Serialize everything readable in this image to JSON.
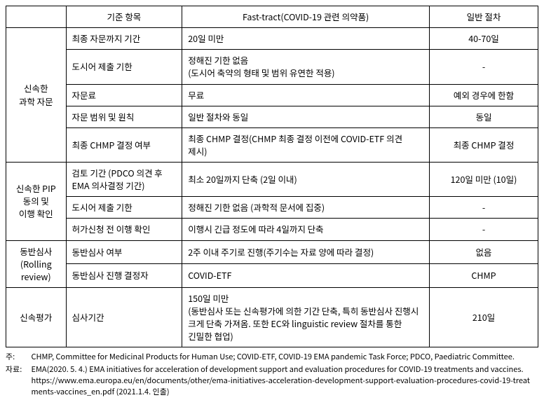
{
  "table": {
    "headers": {
      "group": "",
      "criteria": "기준 항목",
      "fast": "Fast-tract(COVID-19 관련 의약품)",
      "general": "일반 절차"
    },
    "groups": [
      {
        "label": "신속한\n과학 자문",
        "rows": [
          {
            "criteria": "최종 자문까지 기간",
            "fast": "20일 미만",
            "general": "40-70일"
          },
          {
            "criteria": "도시어 제출 기한",
            "fast": "정해진 기한 없음\n(도시어 축약의 형태 및 범위 유연한 적용)",
            "general": "-"
          },
          {
            "criteria": "자문료",
            "fast": "무료",
            "general": "예외 경우에 한함"
          },
          {
            "criteria": "자문 범위 및 원칙",
            "fast": "일반 절차와 동일",
            "general": "동일"
          },
          {
            "criteria": "최종 CHMP 결정 여부",
            "fast": "최종 CHMP 결정(CHMP 최종 결정 이전에 COVID-ETF 의견 제시)",
            "general": "최종 CHMP 결정"
          }
        ]
      },
      {
        "label": "신속한 PIP\n동의 및\n이행 확인",
        "rows": [
          {
            "criteria": "검토 기간 (PDCO 의견 후 EMA 의사결정 기간)",
            "fast": "최소 20일까지 단축  (2일 이내)",
            "general": "120일 미만 (10일)"
          },
          {
            "criteria": "도시어 제출 기한",
            "fast": "정해진 기한 없음 (과학적 문서에 집중)",
            "general": "-"
          },
          {
            "criteria": "허가신청 전 이행 확인",
            "fast": "이행시 긴급 정도에 따라 4일까지 단축",
            "general": "-"
          }
        ]
      },
      {
        "label": "동반심사\n(Rolling\nreview)",
        "rows": [
          {
            "criteria": "동반심사 여부",
            "fast": "2주 이내 주기로 진행(주기수는 자료 양에 따라 결정)",
            "general": "없음"
          },
          {
            "criteria": "동반심사 진행 결정자",
            "fast": "COVID-ETF",
            "general": "CHMP"
          }
        ]
      },
      {
        "label": "신속평가",
        "rows": [
          {
            "criteria": "심사기간",
            "fast": "150일 미만\n(동반심사 또는 신속평가에 의한 기간 단축, 특히 동반심사 진행시 크게 단축 가져옴. 또한 EC와 linguistic review 절차를 통한 긴밀한 협업)",
            "general": "210일"
          }
        ]
      }
    ]
  },
  "footnotes": {
    "note_label": "주:",
    "note_body": "CHMP, Committee for Medicinal Products for Human Use; COVID-ETF, COVID-19 EMA pandemic Task Force; PDCO, Paediatric Committee.",
    "source_label": "자료:",
    "source_body_1": "EMA(2020. 5. 4.) EMA initiatives for acceleration of development support and evaluation procedures for COVID-19 treatments and vaccines.",
    "source_body_2": "https://www.ema.europa.eu/en/documents/other/ema-initiatives-acceleration-development-support-evaluation-procedures-covid-19-treatments-vaccines_en.pdf (2021.1.4. 인출)"
  }
}
